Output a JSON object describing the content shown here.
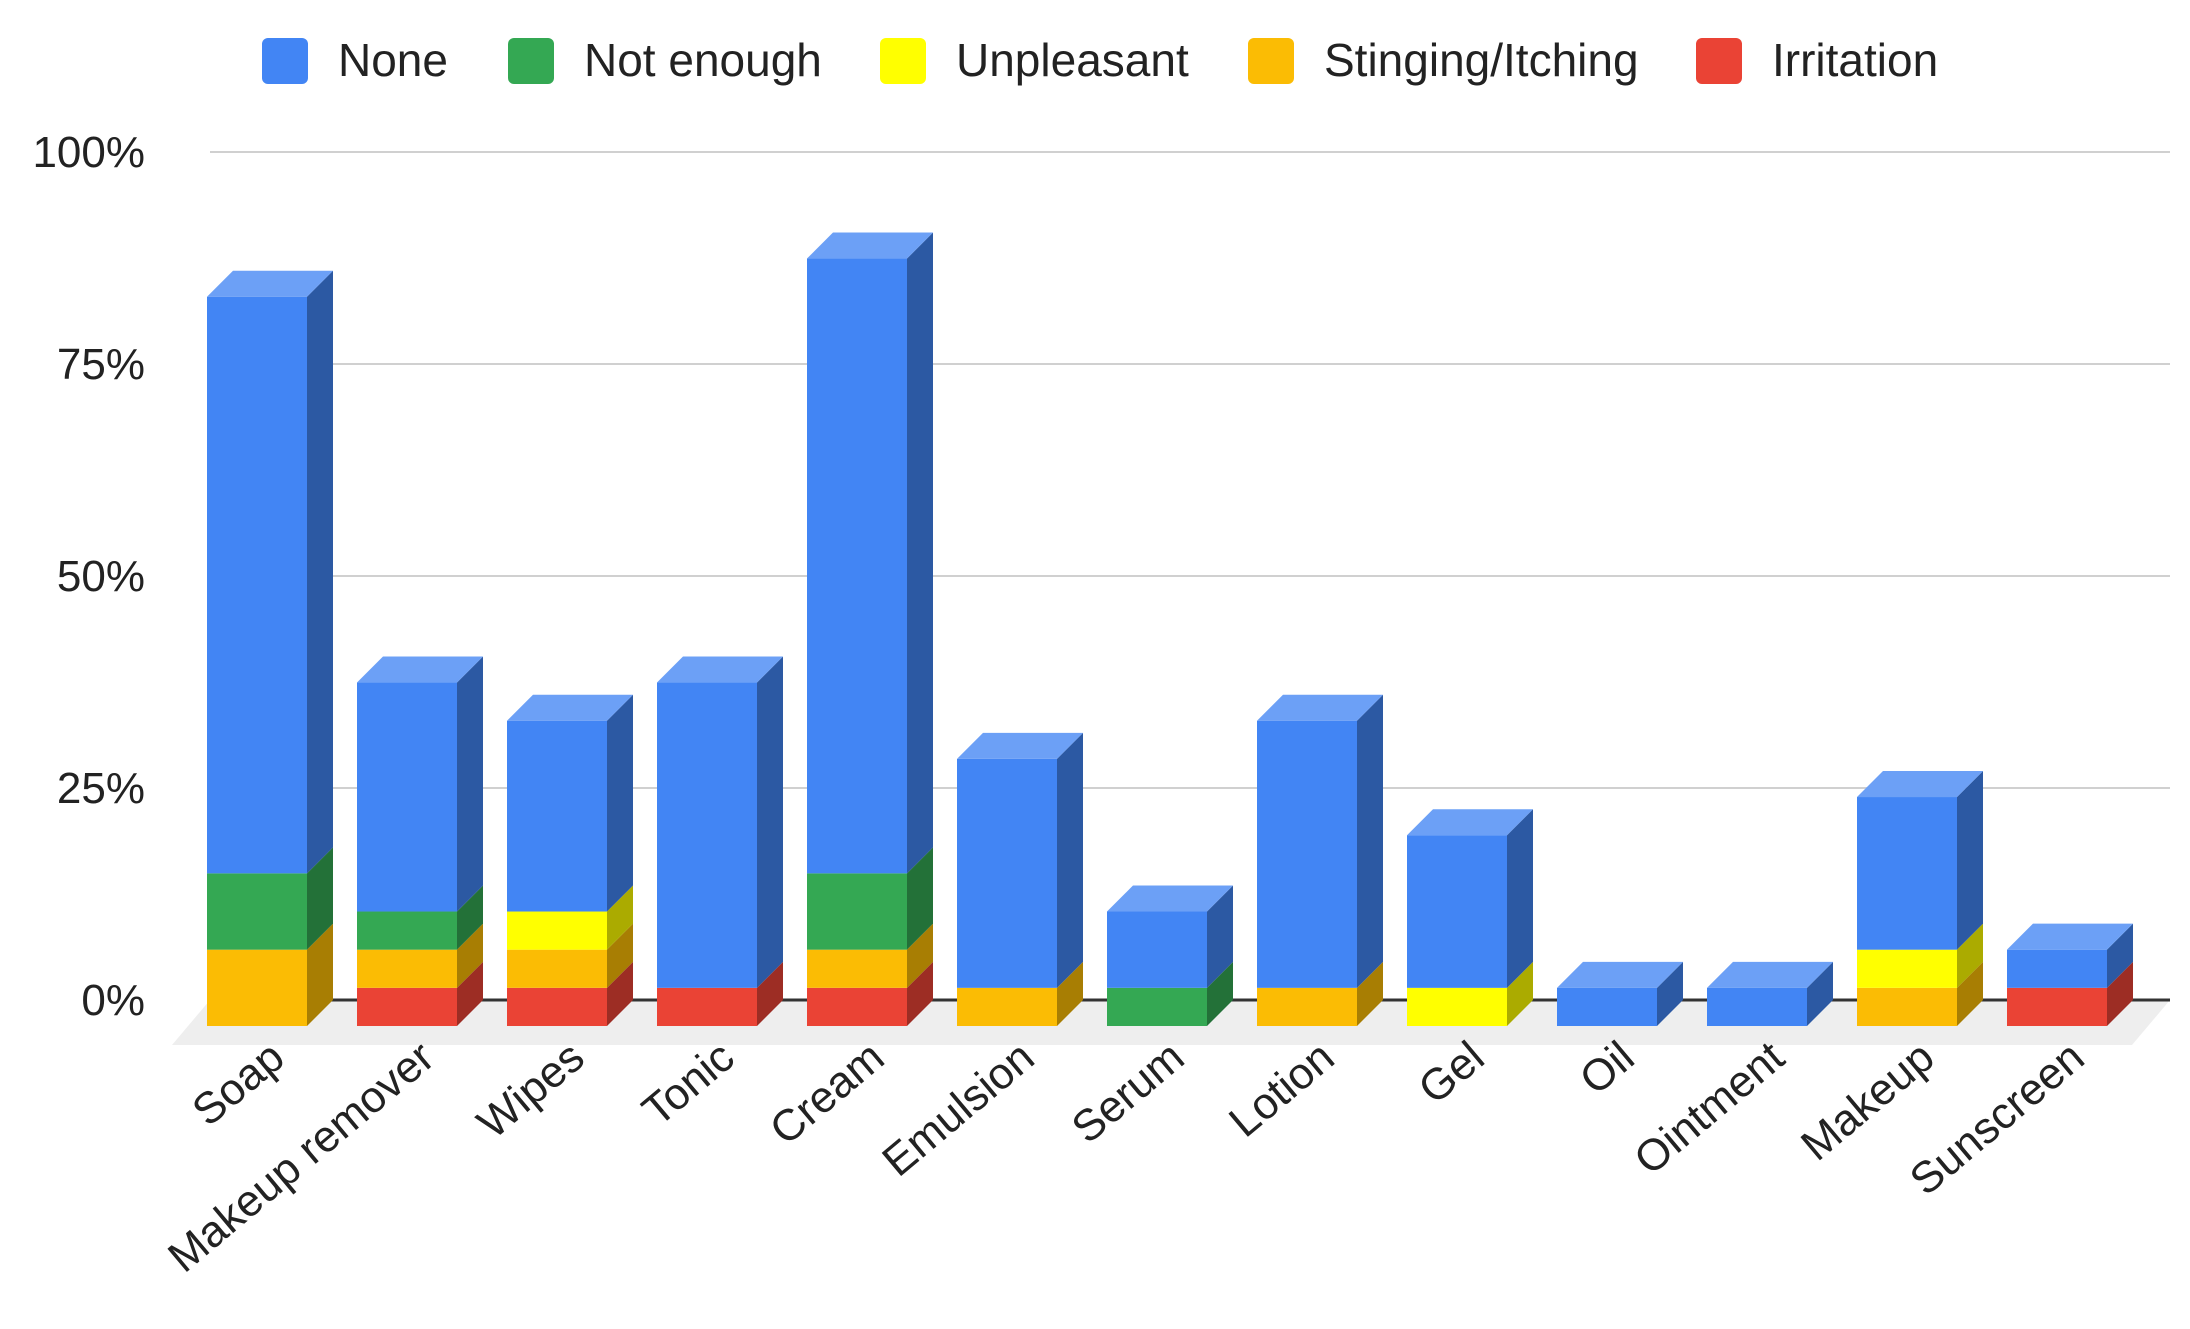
{
  "chart_data": {
    "type": "bar",
    "stacked": true,
    "three_d": true,
    "legend_position": "top",
    "grid": true,
    "ylim": [
      0,
      100
    ],
    "y_ticks": [
      "0%",
      "25%",
      "50%",
      "75%",
      "100%"
    ],
    "y_tick_values": [
      0,
      25,
      50,
      75,
      100
    ],
    "categories": [
      "Soap",
      "Makeup remover",
      "Wipes",
      "Tonic",
      "Cream",
      "Emulsion",
      "Serum",
      "Lotion",
      "Gel",
      "Oil",
      "Ointment",
      "Makeup",
      "Sunscreen"
    ],
    "series": [
      {
        "name": "Irritation",
        "color": "#EA4335",
        "values": [
          0,
          4.5,
          4.5,
          4.5,
          4.5,
          0,
          0,
          0,
          0,
          0,
          0,
          0,
          4.5
        ]
      },
      {
        "name": "Stinging/Itching",
        "color": "#FBBC04",
        "values": [
          9,
          4.5,
          4.5,
          0,
          4.5,
          4.5,
          0,
          4.5,
          0,
          0,
          0,
          4.5,
          0
        ]
      },
      {
        "name": "Unpleasant",
        "color": "#FFFF00",
        "values": [
          0,
          0,
          4.5,
          0,
          0,
          0,
          0,
          0,
          4.5,
          0,
          0,
          4.5,
          0
        ]
      },
      {
        "name": "Not enough",
        "color": "#34A853",
        "values": [
          9,
          4.5,
          0,
          0,
          9,
          0,
          4.5,
          0,
          0,
          0,
          0,
          0,
          0
        ]
      },
      {
        "name": "None",
        "color": "#4285F4",
        "values": [
          68,
          27,
          22.5,
          36,
          72.5,
          27,
          9,
          31.5,
          18,
          4.5,
          4.5,
          18,
          4.5
        ]
      }
    ],
    "legend_order": [
      "None",
      "Not enough",
      "Unpleasant",
      "Stinging/Itching",
      "Irritation"
    ]
  }
}
